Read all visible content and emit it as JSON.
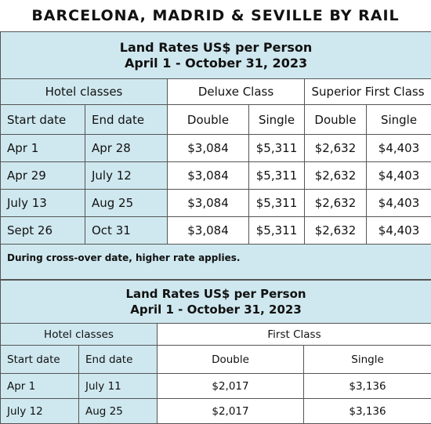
{
  "title": "BARCELONA, MADRID & SEVILLE BY RAIL",
  "table1": {
    "heading": [
      "Land Rates US$ per Person",
      "April 1 - October 31, 2023"
    ],
    "group_headers": [
      "Hotel classes",
      "Deluxe Class",
      "Superior First Class"
    ],
    "column_headers": [
      "Start date",
      "End date",
      "Double",
      "Single",
      "Double",
      "Single"
    ],
    "rows": [
      [
        "Apr 1",
        "Apr 28",
        "$3,084",
        "$5,311",
        "$2,632",
        "$4,403"
      ],
      [
        "Apr 29",
        "July 12",
        "$3,084",
        "$5,311",
        "$2,632",
        "$4,403"
      ],
      [
        "July 13",
        "Aug 25",
        "$3,084",
        "$5,311",
        "$2,632",
        "$4,403"
      ],
      [
        "Sept 26",
        "Oct 31",
        "$3,084",
        "$5,311",
        "$2,632",
        "$4,403"
      ]
    ],
    "note": "During cross-over date, higher rate applies."
  },
  "table2": {
    "heading": [
      "Land Rates US$ per Person",
      "April 1 - October 31, 2023"
    ],
    "group_headers": [
      "Hotel classes",
      "First Class"
    ],
    "column_headers": [
      "Start date",
      "End date",
      "Double",
      "Single"
    ],
    "rows": [
      [
        "Apr 1",
        "July 11",
        "$2,017",
        "$3,136"
      ],
      [
        "July 12",
        "Aug 25",
        "$2,017",
        "$3,136"
      ]
    ]
  }
}
